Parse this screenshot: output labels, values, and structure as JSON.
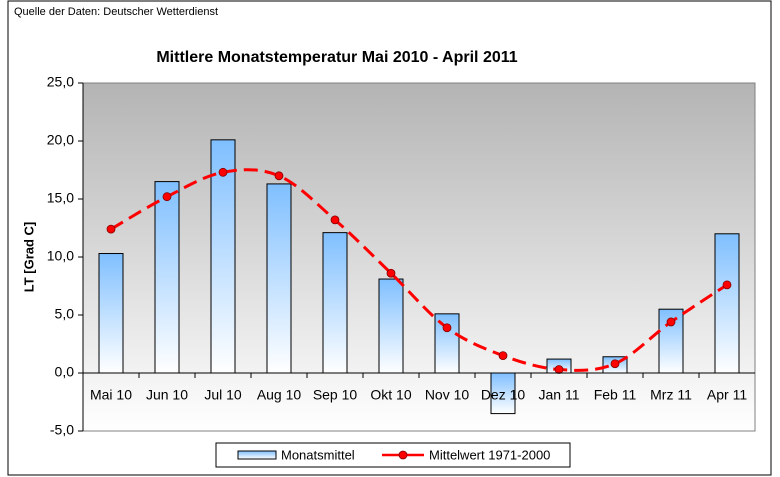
{
  "chart_data": {
    "type": "bar",
    "source": "Quelle der Daten: Deutscher Wetterdienst",
    "title": "Mittlere Monatstemperatur Mai 2010 - April 2011",
    "y_label": "LT [Grad C]",
    "categories": [
      "Mai 10",
      "Jun 10",
      "Jul 10",
      "Aug 10",
      "Sep 10",
      "Okt 10",
      "Nov 10",
      "Dez 10",
      "Jan 11",
      "Feb 11",
      "Mrz 11",
      "Apr 11"
    ],
    "series": [
      {
        "name": "Monatsmittel",
        "type": "bar",
        "color": "#7fbfff",
        "values": [
          10.3,
          16.5,
          20.1,
          16.3,
          12.1,
          8.1,
          5.1,
          -3.5,
          1.2,
          1.4,
          5.5,
          12.0
        ]
      },
      {
        "name": "Mittelwert 1971-2000",
        "type": "line",
        "color": "#ff0000",
        "values": [
          12.4,
          15.2,
          17.3,
          17.0,
          13.2,
          8.6,
          3.9,
          1.5,
          0.3,
          0.8,
          4.4,
          7.6
        ]
      }
    ],
    "ylim": [
      -5,
      25
    ],
    "yticks": [
      {
        "value": -5,
        "label": "-5,0"
      },
      {
        "value": 0,
        "label": "0,0"
      },
      {
        "value": 5,
        "label": "5,0"
      },
      {
        "value": 10,
        "label": "10,0"
      },
      {
        "value": 15,
        "label": "15,0"
      },
      {
        "value": 20,
        "label": "20,0"
      },
      {
        "value": 25,
        "label": "25,0"
      }
    ],
    "legend": "bottom"
  }
}
